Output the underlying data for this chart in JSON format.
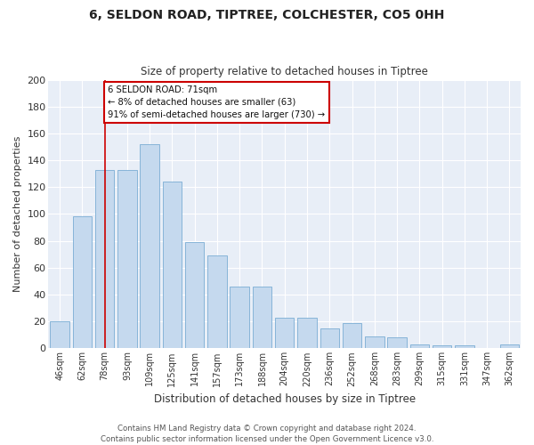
{
  "title1": "6, SELDON ROAD, TIPTREE, COLCHESTER, CO5 0HH",
  "title2": "Size of property relative to detached houses in Tiptree",
  "xlabel": "Distribution of detached houses by size in Tiptree",
  "ylabel": "Number of detached properties",
  "bar_labels": [
    "46sqm",
    "62sqm",
    "78sqm",
    "93sqm",
    "109sqm",
    "125sqm",
    "141sqm",
    "157sqm",
    "173sqm",
    "188sqm",
    "204sqm",
    "220sqm",
    "236sqm",
    "252sqm",
    "268sqm",
    "283sqm",
    "299sqm",
    "315sqm",
    "331sqm",
    "347sqm",
    "362sqm"
  ],
  "bar_values": [
    20,
    98,
    133,
    133,
    152,
    124,
    79,
    69,
    46,
    46,
    23,
    23,
    15,
    19,
    9,
    8,
    3,
    2,
    2,
    0,
    3
  ],
  "bar_color": "#c5d9ee",
  "bar_edge_color": "#7aadd4",
  "vline_index": 2,
  "vline_color": "#cc0000",
  "annotation_text": "6 SELDON ROAD: 71sqm\n← 8% of detached houses are smaller (63)\n91% of semi-detached houses are larger (730) →",
  "annotation_box_color": "#ffffff",
  "annotation_box_edge": "#cc0000",
  "fig_bg_color": "#ffffff",
  "plot_bg_color": "#e8eef7",
  "grid_color": "#ffffff",
  "footer_text": "Contains HM Land Registry data © Crown copyright and database right 2024.\nContains public sector information licensed under the Open Government Licence v3.0.",
  "ylim": [
    0,
    200
  ],
  "yticks": [
    0,
    20,
    40,
    60,
    80,
    100,
    120,
    140,
    160,
    180,
    200
  ]
}
